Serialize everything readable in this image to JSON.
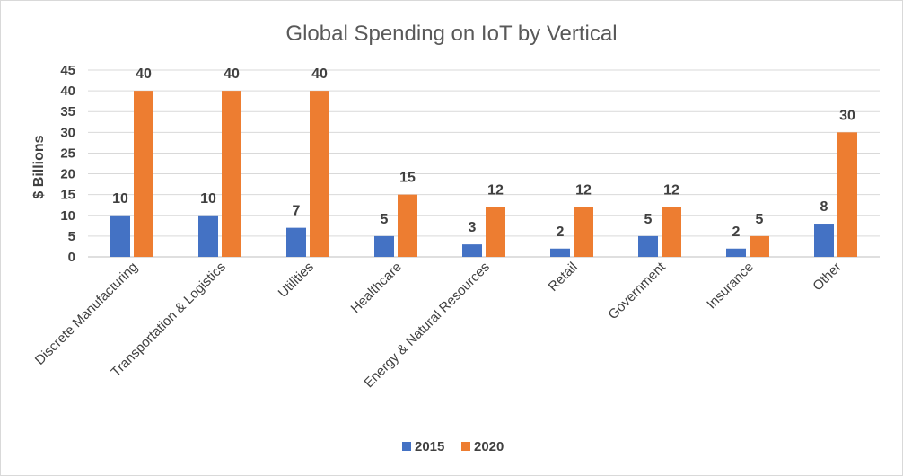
{
  "chart_data": {
    "type": "bar",
    "title": "Global Spending on IoT by Vertical",
    "xlabel": "",
    "ylabel": "$ Billions",
    "ylim": [
      0,
      45
    ],
    "yticks": [
      0,
      5,
      10,
      15,
      20,
      25,
      30,
      35,
      40,
      45
    ],
    "grid": true,
    "legend_position": "bottom",
    "categories": [
      "Discrete Manufacturing",
      "Transportation & Logistics",
      "Utilities",
      "Healthcare",
      "Energy & Natural Resources",
      "Retail",
      "Government",
      "Insurance",
      "Other"
    ],
    "series": [
      {
        "name": "2015",
        "color": "#4472c4",
        "values": [
          10,
          10,
          7,
          5,
          3,
          2,
          5,
          2,
          8
        ]
      },
      {
        "name": "2020",
        "color": "#ed7d31",
        "values": [
          40,
          40,
          40,
          15,
          12,
          12,
          12,
          5,
          30
        ]
      }
    ]
  }
}
